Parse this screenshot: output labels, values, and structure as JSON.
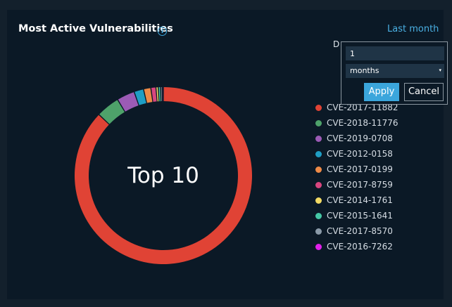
{
  "widget": {
    "title": "Most Active Vulnerabilities",
    "range_link": "Last month",
    "hidden_label": "D"
  },
  "date_popup": {
    "amount_value": "1",
    "unit_value": "months",
    "apply_label": "Apply",
    "cancel_label": "Cancel"
  },
  "chart_data": {
    "type": "pie",
    "center_label": "Top 10",
    "categories": [
      "CVE-2017-11882",
      "CVE-2018-11776",
      "CVE-2019-0708",
      "CVE-2012-0158",
      "CVE-2017-0199",
      "CVE-2017-8759",
      "CVE-2014-1761",
      "CVE-2015-1641",
      "CVE-2017-8570",
      "CVE-2016-7262"
    ],
    "values": [
      85,
      4.2,
      3.2,
      1.7,
      1.3,
      0.9,
      0.4,
      0.4,
      0.3,
      0.2
    ],
    "colors": [
      "#e04335",
      "#4ea26a",
      "#9c5bb5",
      "#1f9ec4",
      "#ee8a47",
      "#d8467f",
      "#f2da64",
      "#45c7a5",
      "#8a9aa8",
      "#e020ea"
    ],
    "legend_position": "right"
  }
}
